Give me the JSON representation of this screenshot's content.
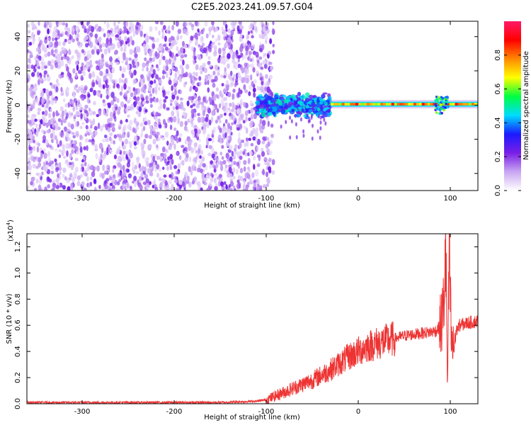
{
  "chart_data": [
    {
      "type": "heatmap",
      "title": "C2E5.2023.241.09.57.G04",
      "xlabel": "Height of straight line (km)",
      "ylabel": "Frequency (Hz)",
      "xlim": [
        -360,
        130
      ],
      "ylim": [
        -50,
        49
      ],
      "xticks": [
        "-300",
        "-200",
        "-100",
        "0",
        "100"
      ],
      "yticks": [
        "40",
        "20",
        "0",
        "-20",
        "-40"
      ],
      "colorbar": {
        "label": "Normalized spectral amplitude",
        "range": [
          0,
          1
        ],
        "ticks": [
          "0.0",
          "0.2",
          "0.4",
          "0.6",
          "0.8"
        ],
        "colors": [
          "#ffffff",
          "#c9a6f2",
          "#7a1ee6",
          "#1a1aff",
          "#00dcff",
          "#00ff40",
          "#ffff00",
          "#ff8800",
          "#ff0000",
          "#ff1a66"
        ]
      },
      "regions": [
        {
          "x_range": [
            -360,
            -100
          ],
          "y_range": [
            -50,
            49
          ],
          "amplitude": [
            0.05,
            0.25
          ],
          "description_level": "broadband noise"
        },
        {
          "x_range": [
            -110,
            -30
          ],
          "y_range": [
            -8,
            8
          ],
          "amplitude": [
            0.2,
            0.5
          ]
        },
        {
          "x_range": [
            -30,
            130
          ],
          "y_range": [
            -1,
            2
          ],
          "amplitude": [
            0.6,
            0.9
          ]
        }
      ]
    },
    {
      "type": "line",
      "xlabel": "Height of straight line (km)",
      "ylabel": "SNR (10 * v/v)",
      "scale_label": "(x10",
      "scale_exp": "4",
      "scale_close": ")",
      "xlim": [
        -360,
        130
      ],
      "ylim": [
        0,
        1.3
      ],
      "xticks": [
        "-300",
        "-200",
        "-100",
        "0",
        "100"
      ],
      "yticks": [
        "0.0",
        "0.2",
        "0.4",
        "0.6",
        "0.8",
        "1.0",
        "1.2"
      ],
      "series": [
        {
          "color": "#ee3333",
          "x": [
            -360,
            -300,
            -200,
            -150,
            -110,
            -100,
            -90,
            -80,
            -70,
            -60,
            -50,
            -40,
            -30,
            -20,
            -10,
            0,
            10,
            20,
            30,
            40,
            50,
            60,
            70,
            80,
            85,
            90,
            93,
            95,
            97,
            99,
            101,
            103,
            106,
            110,
            120,
            130
          ],
          "y": [
            0.01,
            0.01,
            0.01,
            0.01,
            0.02,
            0.03,
            0.06,
            0.09,
            0.12,
            0.15,
            0.18,
            0.22,
            0.26,
            0.31,
            0.36,
            0.4,
            0.44,
            0.46,
            0.48,
            0.5,
            0.52,
            0.53,
            0.54,
            0.55,
            0.56,
            0.6,
            0.75,
            1.25,
            0.1,
            1.2,
            0.5,
            0.4,
            0.55,
            0.6,
            0.62,
            0.63
          ]
        }
      ]
    }
  ]
}
